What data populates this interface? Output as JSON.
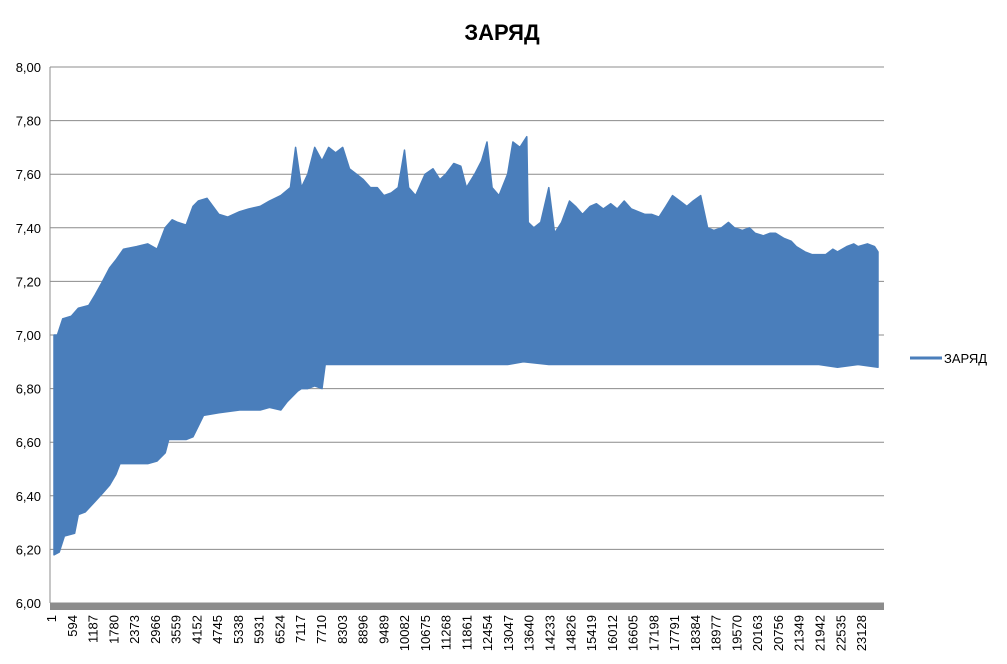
{
  "chart_data": {
    "type": "area",
    "title": "ЗАРЯД",
    "xlabel": "",
    "ylabel": "",
    "ylim": [
      6.0,
      8.0
    ],
    "yticks": [
      "6,00",
      "6,20",
      "6,40",
      "6,60",
      "6,80",
      "7,00",
      "7,20",
      "7,40",
      "7,60",
      "7,80",
      "8,00"
    ],
    "xlim": [
      1,
      23700
    ],
    "xticks": [
      "1",
      "594",
      "1187",
      "1780",
      "2373",
      "2966",
      "3559",
      "4152",
      "4745",
      "5338",
      "5931",
      "6524",
      "7117",
      "7710",
      "8303",
      "8896",
      "9489",
      "10082",
      "10675",
      "11268",
      "11861",
      "12454",
      "13047",
      "13640",
      "14233",
      "14826",
      "15419",
      "16012",
      "16605",
      "17198",
      "17791",
      "18384",
      "18977",
      "19570",
      "20163",
      "20756",
      "21349",
      "21942",
      "22535",
      "23128"
    ],
    "grid": true,
    "legend_position": "right",
    "series": [
      {
        "name": "ЗАРЯД",
        "color": "#4a7ebb",
        "upper": [
          [
            1,
            7.0
          ],
          [
            100,
            7.0
          ],
          [
            250,
            7.06
          ],
          [
            500,
            7.07
          ],
          [
            700,
            7.1
          ],
          [
            1000,
            7.11
          ],
          [
            1187,
            7.15
          ],
          [
            1400,
            7.2
          ],
          [
            1600,
            7.25
          ],
          [
            1780,
            7.28
          ],
          [
            2000,
            7.32
          ],
          [
            2373,
            7.33
          ],
          [
            2700,
            7.34
          ],
          [
            2966,
            7.32
          ],
          [
            3200,
            7.4
          ],
          [
            3400,
            7.43
          ],
          [
            3559,
            7.42
          ],
          [
            3800,
            7.41
          ],
          [
            4000,
            7.48
          ],
          [
            4152,
            7.5
          ],
          [
            4400,
            7.51
          ],
          [
            4745,
            7.45
          ],
          [
            5000,
            7.44
          ],
          [
            5338,
            7.46
          ],
          [
            5600,
            7.47
          ],
          [
            5931,
            7.48
          ],
          [
            6200,
            7.5
          ],
          [
            6524,
            7.52
          ],
          [
            6800,
            7.55
          ],
          [
            6950,
            7.7
          ],
          [
            7117,
            7.55
          ],
          [
            7300,
            7.6
          ],
          [
            7500,
            7.7
          ],
          [
            7710,
            7.65
          ],
          [
            7900,
            7.7
          ],
          [
            8100,
            7.68
          ],
          [
            8303,
            7.7
          ],
          [
            8500,
            7.62
          ],
          [
            8700,
            7.6
          ],
          [
            8896,
            7.58
          ],
          [
            9100,
            7.55
          ],
          [
            9300,
            7.55
          ],
          [
            9489,
            7.52
          ],
          [
            9700,
            7.53
          ],
          [
            9900,
            7.55
          ],
          [
            10082,
            7.69
          ],
          [
            10200,
            7.55
          ],
          [
            10400,
            7.52
          ],
          [
            10675,
            7.6
          ],
          [
            10900,
            7.62
          ],
          [
            11100,
            7.58
          ],
          [
            11268,
            7.6
          ],
          [
            11500,
            7.64
          ],
          [
            11700,
            7.63
          ],
          [
            11861,
            7.55
          ],
          [
            12100,
            7.6
          ],
          [
            12300,
            7.65
          ],
          [
            12454,
            7.72
          ],
          [
            12600,
            7.55
          ],
          [
            12800,
            7.52
          ],
          [
            13047,
            7.6
          ],
          [
            13200,
            7.72
          ],
          [
            13400,
            7.7
          ],
          [
            13600,
            7.74
          ],
          [
            13640,
            7.42
          ],
          [
            13800,
            7.4
          ],
          [
            14000,
            7.42
          ],
          [
            14233,
            7.55
          ],
          [
            14400,
            7.38
          ],
          [
            14600,
            7.42
          ],
          [
            14826,
            7.5
          ],
          [
            15000,
            7.48
          ],
          [
            15200,
            7.45
          ],
          [
            15419,
            7.48
          ],
          [
            15600,
            7.49
          ],
          [
            15800,
            7.47
          ],
          [
            16012,
            7.49
          ],
          [
            16200,
            7.47
          ],
          [
            16400,
            7.5
          ],
          [
            16605,
            7.47
          ],
          [
            16800,
            7.46
          ],
          [
            17000,
            7.45
          ],
          [
            17198,
            7.45
          ],
          [
            17400,
            7.44
          ],
          [
            17600,
            7.48
          ],
          [
            17791,
            7.52
          ],
          [
            18000,
            7.5
          ],
          [
            18200,
            7.48
          ],
          [
            18384,
            7.5
          ],
          [
            18600,
            7.52
          ],
          [
            18800,
            7.4
          ],
          [
            18977,
            7.39
          ],
          [
            19200,
            7.4
          ],
          [
            19400,
            7.42
          ],
          [
            19570,
            7.4
          ],
          [
            19800,
            7.39
          ],
          [
            20000,
            7.4
          ],
          [
            20163,
            7.38
          ],
          [
            20400,
            7.37
          ],
          [
            20600,
            7.38
          ],
          [
            20756,
            7.38
          ],
          [
            21000,
            7.36
          ],
          [
            21200,
            7.35
          ],
          [
            21349,
            7.33
          ],
          [
            21600,
            7.31
          ],
          [
            21800,
            7.3
          ],
          [
            21942,
            7.3
          ],
          [
            22200,
            7.3
          ],
          [
            22400,
            7.32
          ],
          [
            22535,
            7.31
          ],
          [
            22800,
            7.33
          ],
          [
            23000,
            7.34
          ],
          [
            23128,
            7.33
          ],
          [
            23400,
            7.34
          ],
          [
            23600,
            7.33
          ],
          [
            23700,
            7.31
          ]
        ],
        "lower": [
          [
            1,
            6.18
          ],
          [
            150,
            6.19
          ],
          [
            300,
            6.25
          ],
          [
            594,
            6.26
          ],
          [
            700,
            6.33
          ],
          [
            900,
            6.34
          ],
          [
            1187,
            6.38
          ],
          [
            1400,
            6.41
          ],
          [
            1600,
            6.44
          ],
          [
            1780,
            6.48
          ],
          [
            1900,
            6.52
          ],
          [
            2373,
            6.52
          ],
          [
            2700,
            6.52
          ],
          [
            2966,
            6.53
          ],
          [
            3200,
            6.56
          ],
          [
            3300,
            6.61
          ],
          [
            3559,
            6.61
          ],
          [
            3800,
            6.61
          ],
          [
            4000,
            6.62
          ],
          [
            4152,
            6.66
          ],
          [
            4300,
            6.7
          ],
          [
            4745,
            6.71
          ],
          [
            5338,
            6.72
          ],
          [
            5931,
            6.72
          ],
          [
            6200,
            6.73
          ],
          [
            6524,
            6.72
          ],
          [
            6700,
            6.75
          ],
          [
            7000,
            6.79
          ],
          [
            7117,
            6.8
          ],
          [
            7300,
            6.8
          ],
          [
            7500,
            6.81
          ],
          [
            7710,
            6.8
          ],
          [
            7800,
            6.89
          ],
          [
            8303,
            6.89
          ],
          [
            9489,
            6.89
          ],
          [
            10675,
            6.89
          ],
          [
            11861,
            6.89
          ],
          [
            13047,
            6.89
          ],
          [
            13500,
            6.9
          ],
          [
            14233,
            6.89
          ],
          [
            15419,
            6.89
          ],
          [
            16605,
            6.89
          ],
          [
            17791,
            6.89
          ],
          [
            18977,
            6.89
          ],
          [
            20163,
            6.89
          ],
          [
            21349,
            6.89
          ],
          [
            22000,
            6.89
          ],
          [
            22535,
            6.88
          ],
          [
            23128,
            6.89
          ],
          [
            23700,
            6.88
          ]
        ]
      }
    ]
  }
}
